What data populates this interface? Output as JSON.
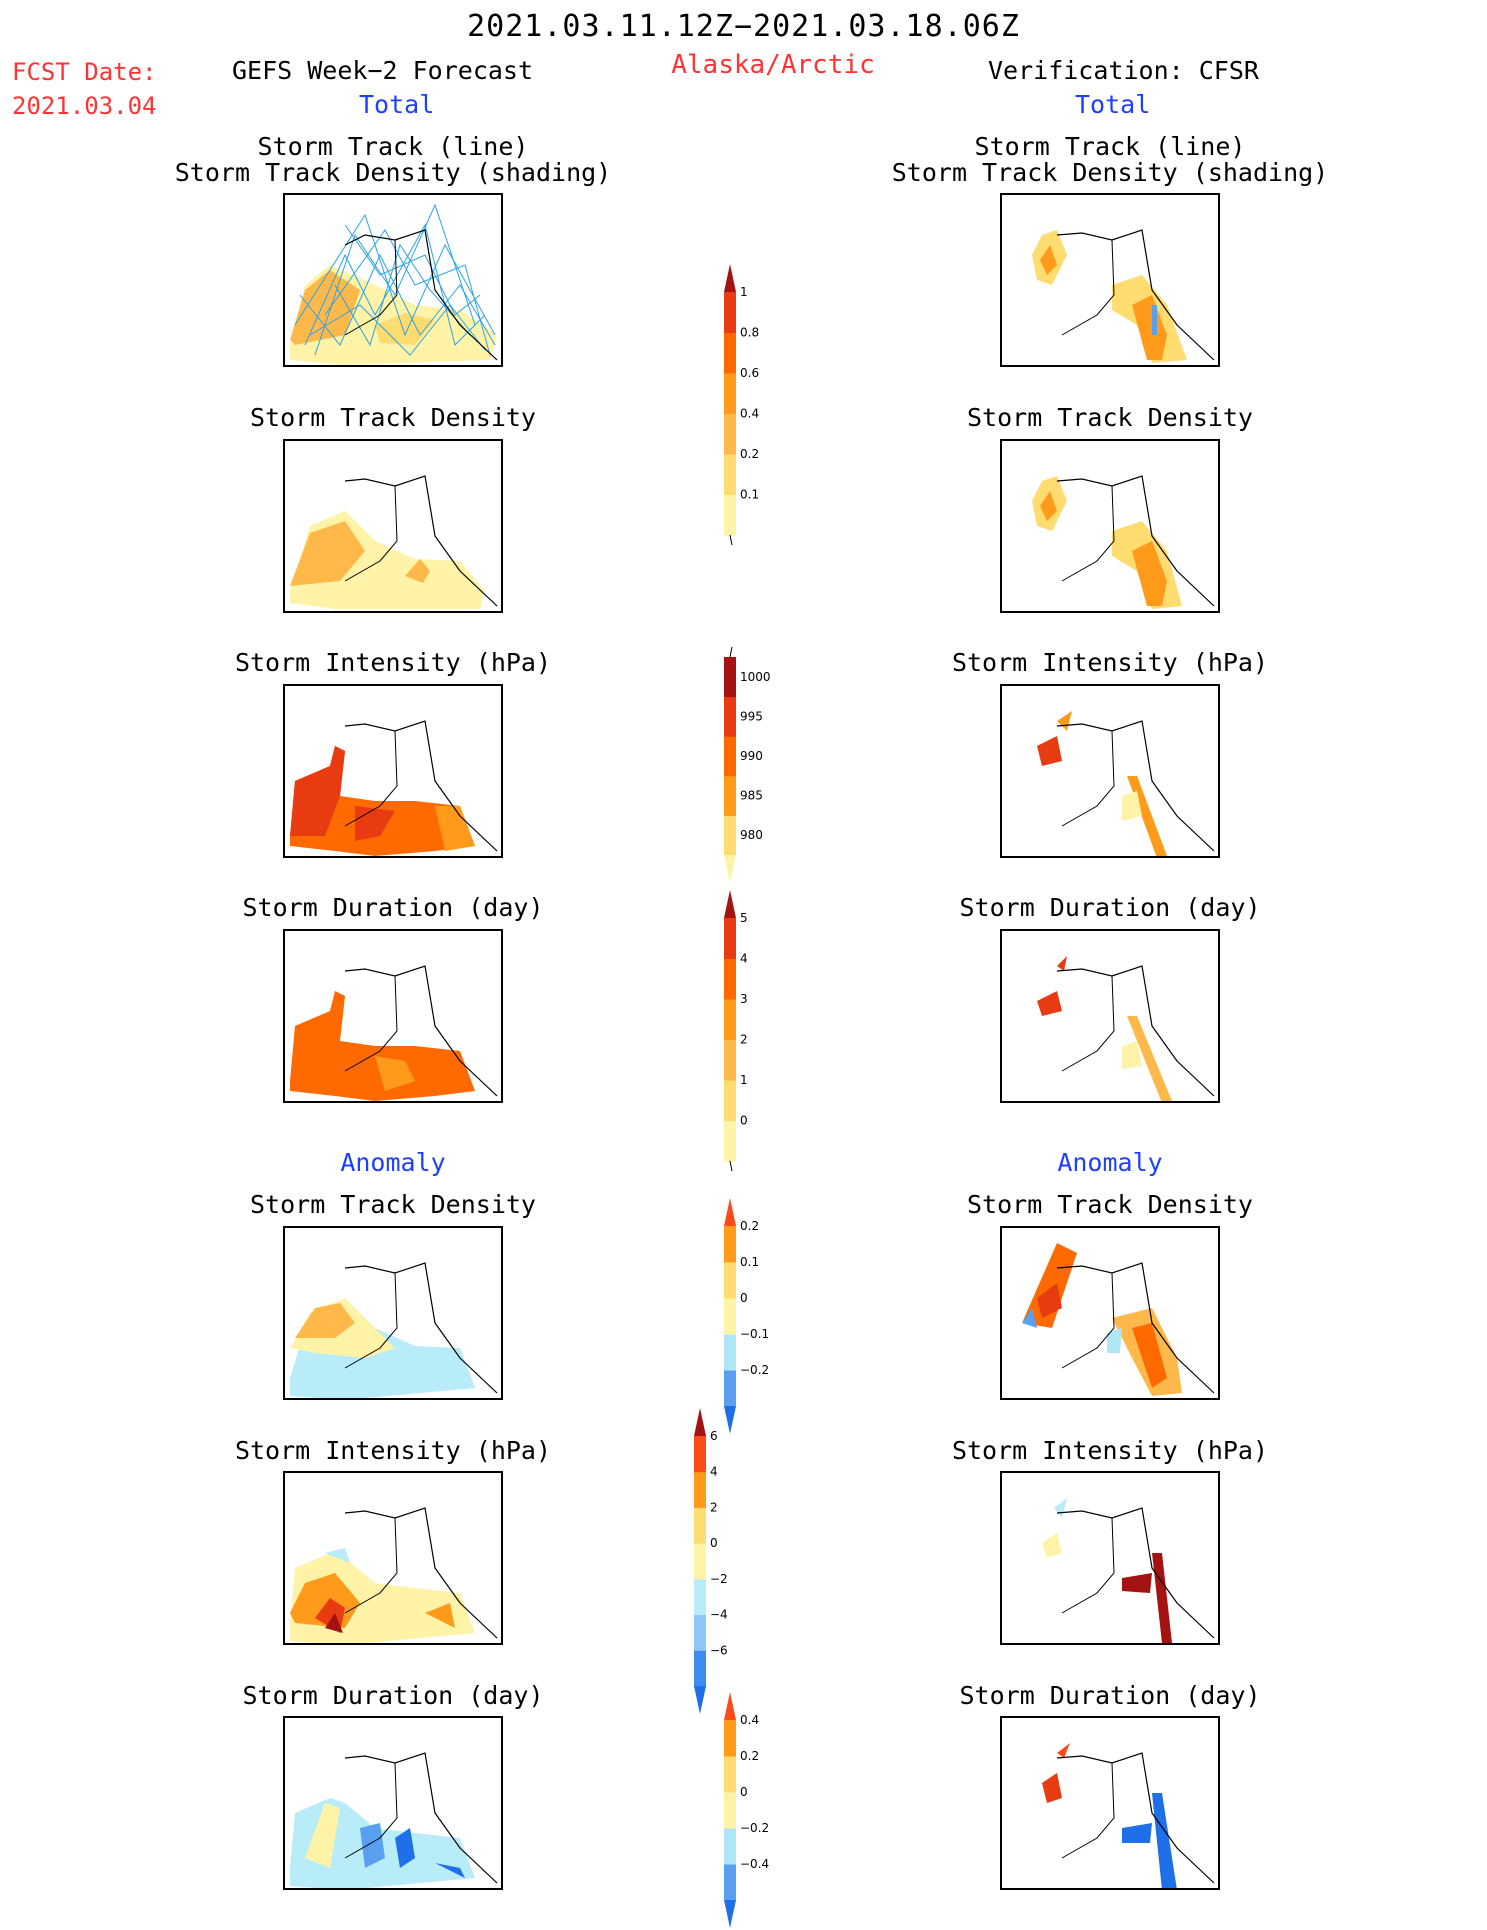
{
  "header": {
    "date_range": "2021.03.11.12Z−2021.03.18.06Z",
    "region": "Alaska/Arctic",
    "fcst_label": "FCST Date:",
    "fcst_date": "2021.03.04"
  },
  "left_column": {
    "title": "GEFS Week−2 Forecast",
    "total_label": "Total",
    "anomaly_label": "Anomaly"
  },
  "right_column": {
    "title": "Verification: CFSR",
    "total_label": "Total",
    "anomaly_label": "Anomaly"
  },
  "panel_titles": {
    "track_line": "Storm Track (line)",
    "track_shading": "Storm Track Density (shading)",
    "density": "Storm Track Density",
    "intensity": "Storm Intensity (hPa)",
    "duration": "Storm Duration (day)"
  },
  "colorbars": {
    "density": {
      "labels": [
        "1",
        "0.8",
        "0.6",
        "0.4",
        "0.2",
        "0.1"
      ],
      "colors": [
        "#fff3a8",
        "#ffdc70",
        "#ffb84a",
        "#ff9a1a",
        "#ff6a00",
        "#e83b12",
        "#a51212"
      ]
    },
    "intensity": {
      "labels": [
        "1000",
        "995",
        "990",
        "985",
        "980"
      ],
      "colors": [
        "#fff3a8",
        "#ffdc70",
        "#ff9a1a",
        "#ff6a00",
        "#e83b12",
        "#a51212"
      ]
    },
    "duration": {
      "labels": [
        "5",
        "4",
        "3",
        "2",
        "1",
        "0"
      ],
      "colors": [
        "#fff3a8",
        "#ffdc70",
        "#ffb84a",
        "#ff9a1a",
        "#ff6a00",
        "#e83b12",
        "#a51212"
      ]
    },
    "density_anom": {
      "labels": [
        "0.2",
        "0.1",
        "0",
        "−0.1",
        "−0.2"
      ],
      "colors": [
        "#1f6fe8",
        "#5aa0f0",
        "#aee6f5",
        "#fff3a8",
        "#ffdc70",
        "#ff9a1a",
        "#ff4a1a"
      ]
    },
    "intensity_anom": {
      "labels": [
        "6",
        "4",
        "2",
        "0",
        "−2",
        "−4",
        "−6"
      ],
      "colors": [
        "#1f6fe8",
        "#3d8cf0",
        "#8ec6f8",
        "#b8ecf8",
        "#fff3a8",
        "#ffdc70",
        "#ff9a1a",
        "#ff4a1a",
        "#a51212"
      ]
    },
    "duration_anom": {
      "labels": [
        "0.4",
        "0.2",
        "0",
        "−0.2",
        "−0.4"
      ],
      "colors": [
        "#1f6fe8",
        "#5aa0f0",
        "#aee6f5",
        "#fff3a8",
        "#ffdc70",
        "#ff9a1a",
        "#ff4a1a"
      ]
    }
  }
}
